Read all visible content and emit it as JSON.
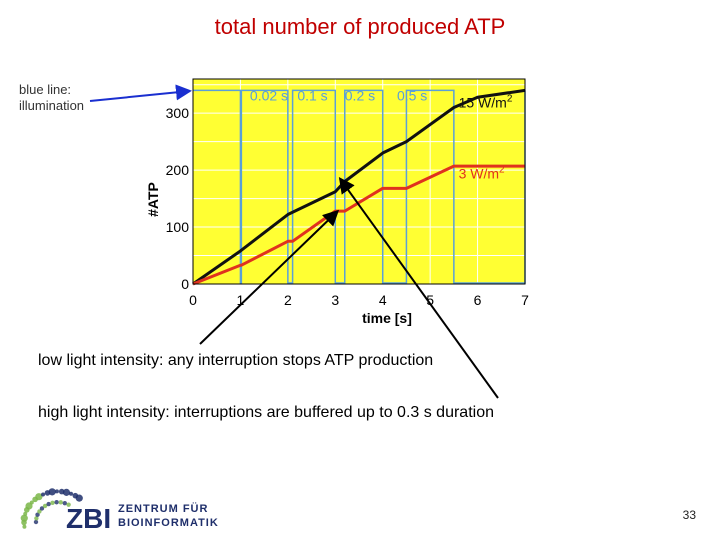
{
  "slide": {
    "title": "total number of produced ATP",
    "callout_illumination_line1": "blue line:",
    "callout_illumination_line2": "illumination",
    "note_low": "low light intensity: any interruption stops ATP production",
    "note_high": "high light intensity: interruptions are buffered up to 0.3 s duration",
    "page_number": "33"
  },
  "logo": {
    "wordmark": "ZBI",
    "line1": "ZENTRUM FÜR",
    "line2": "BIOINFORMATIK",
    "color": "#1f2f6b",
    "dot_color": "#7ab648"
  },
  "colors": {
    "plot_background": "#ffff33",
    "grid": "#ffffff",
    "illumination": "#5aa0d8",
    "series_high": "#111111",
    "series_low": "#e0321e",
    "title": "#c00000",
    "arrow_blue": "#1a2fd0"
  },
  "chart_data": {
    "type": "line",
    "title": "",
    "xlabel": "time [s]",
    "ylabel": "#ATP",
    "xlim": [
      0,
      7
    ],
    "ylim": [
      0,
      360
    ],
    "xticks": [
      0,
      1,
      2,
      3,
      4,
      5,
      6,
      7
    ],
    "yticks": [
      0,
      100,
      200,
      300
    ],
    "grid": true,
    "interruption_labels": [
      {
        "text": "0.02 s",
        "x": 1.2
      },
      {
        "text": "0.1 s",
        "x": 2.2
      },
      {
        "text": "0.2 s",
        "x": 3.2
      },
      {
        "text": "0.5 s",
        "x": 4.3
      }
    ],
    "illumination_off_intervals": [
      [
        1.0,
        1.02
      ],
      [
        2.0,
        2.1
      ],
      [
        3.0,
        3.2
      ],
      [
        4.0,
        4.5
      ],
      [
        5.5,
        7.0
      ]
    ],
    "series": [
      {
        "name": "15 W/m2",
        "label_base": "15 W/m",
        "label_sup": "2",
        "x": [
          0,
          1.0,
          2.0,
          3.0,
          3.2,
          4.0,
          4.5,
          5.5,
          6.0,
          7.0
        ],
        "y": [
          0,
          58,
          122,
          162,
          180,
          230,
          250,
          310,
          328,
          340
        ]
      },
      {
        "name": "3 W/m2",
        "label_base": "3 W/m",
        "label_sup": "2",
        "x": [
          0,
          1.0,
          1.02,
          2.0,
          2.1,
          3.0,
          3.2,
          4.0,
          4.5,
          5.5,
          6.0,
          7.0
        ],
        "y": [
          0,
          33,
          33,
          75,
          75,
          128,
          128,
          168,
          168,
          207,
          207,
          207
        ]
      }
    ],
    "series_label_positions": [
      [
        5.6,
        310
      ],
      [
        5.6,
        185
      ]
    ],
    "pointer_arrows": [
      {
        "from": "low light intensity note",
        "to": [
          3.05,
          128
        ]
      },
      {
        "from": "high light intensity note",
        "to": [
          3.1,
          185
        ]
      }
    ]
  }
}
